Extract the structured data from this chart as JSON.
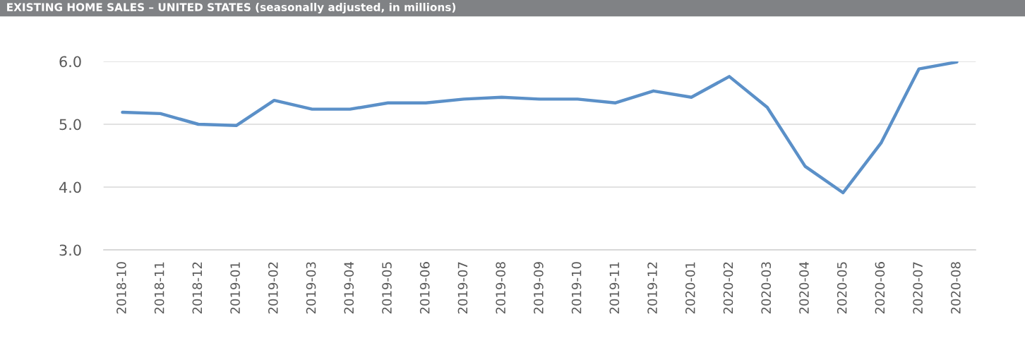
{
  "chart_data": {
    "type": "line",
    "title": "EXISTING HOME SALES – UNITED STATES (seasonally adjusted, in millions)",
    "categories": [
      "2018-10",
      "2018-11",
      "2018-12",
      "2019-01",
      "2019-02",
      "2019-03",
      "2019-04",
      "2019-05",
      "2019-06",
      "2019-07",
      "2019-08",
      "2019-09",
      "2019-10",
      "2019-11",
      "2019-12",
      "2020-01",
      "2020-02",
      "2020-03",
      "2020-04",
      "2020-05",
      "2020-06",
      "2020-07",
      "2020-08"
    ],
    "series": [
      {
        "color": "#5b90c8",
        "values": [
          5.19,
          5.17,
          5.0,
          4.98,
          5.38,
          5.24,
          5.24,
          5.34,
          5.34,
          5.4,
          5.43,
          5.4,
          5.4,
          5.34,
          5.53,
          5.43,
          5.76,
          5.27,
          4.33,
          3.91,
          4.7,
          5.88,
          5.99
        ]
      }
    ],
    "ylim": [
      3,
      6
    ],
    "yticks": [
      {
        "value": 3,
        "label": "3.0"
      },
      {
        "value": 4,
        "label": "4.0"
      },
      {
        "value": 5,
        "label": "5.0"
      },
      {
        "value": 6,
        "label": "6.0"
      }
    ],
    "grid": "y",
    "legend": false,
    "marker": "none",
    "line_style": "solid"
  }
}
